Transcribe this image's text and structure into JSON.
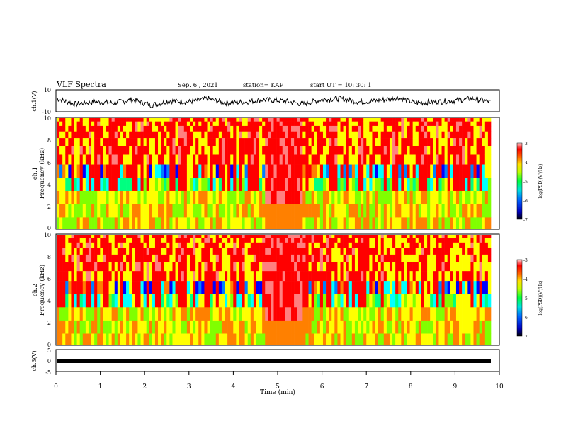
{
  "header": {
    "title": "VLF Spectra",
    "date": "Sep. 6 , 2021",
    "station": "station= KAP",
    "start": "start UT =  10: 30: 1"
  },
  "chart_data": [
    {
      "type": "line",
      "panel": "ch1-waveform",
      "ylabel": "ch.1(V)",
      "ylim": [
        -10,
        10
      ],
      "yticks": [
        "10",
        "-10"
      ],
      "xlim": [
        0,
        10
      ],
      "series": [
        {
          "values": [
            2,
            -3,
            -1,
            -2,
            1,
            -4,
            0,
            -1,
            2,
            -2,
            -1,
            1,
            0,
            -3,
            1,
            2,
            -1,
            0,
            3,
            -2,
            -1,
            0,
            2,
            -1
          ]
        }
      ]
    },
    {
      "type": "heatmap",
      "panel": "ch1-spectrogram",
      "ylabel": "ch.1\nFrequency  (kHz)",
      "ylim": [
        0,
        10
      ],
      "yticks": [
        "0",
        "2",
        "4",
        "6",
        "8",
        "10"
      ],
      "xlim": [
        0,
        10
      ],
      "colorbar": {
        "label": "log(PSD)(V²/Hz)",
        "ticks": [
          "-3",
          "-4",
          "-5",
          "-6",
          "-7"
        ],
        "range": [
          -7,
          -3
        ]
      }
    },
    {
      "type": "heatmap",
      "panel": "ch2-spectrogram",
      "ylabel": "ch.2\nFrequency  (kHz)",
      "ylim": [
        0,
        10
      ],
      "yticks": [
        "0",
        "2",
        "4",
        "6",
        "8",
        "10"
      ],
      "xlim": [
        0,
        10
      ],
      "colorbar": {
        "label": "log(PSD)(V²/Hz)",
        "ticks": [
          "-3",
          "-4",
          "-5",
          "-6",
          "-7"
        ],
        "range": [
          -7,
          -3
        ]
      }
    },
    {
      "type": "line",
      "panel": "ch3-waveform",
      "ylabel": "ch.3(V)",
      "ylim": [
        -5,
        5
      ],
      "yticks": [
        "5",
        "0",
        "-5"
      ],
      "xlim": [
        0,
        10
      ],
      "xlabel": "Time  (min)",
      "xticks": [
        "0",
        "1",
        "2",
        "3",
        "4",
        "5",
        "6",
        "7",
        "8",
        "9",
        "10"
      ]
    }
  ],
  "colors": {
    "colormap": [
      "#000080",
      "#0000ff",
      "#0080ff",
      "#00ffff",
      "#00ff80",
      "#80ff00",
      "#ffff00",
      "#ff8000",
      "#ff0000",
      "#ff8080",
      "#ffffff"
    ]
  }
}
